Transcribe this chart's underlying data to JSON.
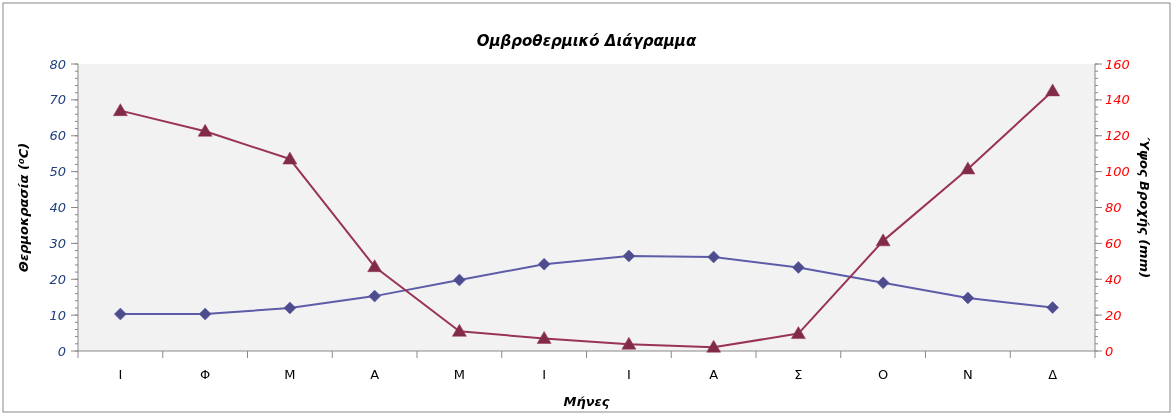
{
  "chart_data": {
    "type": "line",
    "title": "Ομβροθερμικό Διάγραμμα",
    "xlabel": "Μήνες",
    "ylabel": "Θερμοκρασία (⁰C)",
    "y2label": "Ύψος Βροχής (mm)",
    "categories": [
      "Ι",
      "Φ",
      "Μ",
      "Α",
      "Μ",
      "Ι",
      "Ι",
      "Α",
      "Σ",
      "Ο",
      "Ν",
      "Δ"
    ],
    "series": [
      {
        "color": "#5c5ca8",
        "marker": "diamond",
        "values": [
          10.3,
          10.3,
          12.0,
          15.3,
          19.8,
          24.2,
          26.5,
          26.2,
          23.3,
          19.0,
          14.8,
          12.1
        ]
      },
      {
        "color": "#993355",
        "marker": "triangle",
        "axis": "y2",
        "values": [
          134,
          122.5,
          107,
          47,
          11,
          7,
          3.8,
          2.1,
          9.7,
          61.4,
          101.5,
          145
        ]
      }
    ],
    "ylim": [
      0,
      80
    ],
    "yticks": [
      0,
      10,
      20,
      30,
      40,
      50,
      60,
      70,
      80
    ],
    "y2lim": [
      0,
      160
    ],
    "y2ticks": [
      0,
      20,
      40,
      60,
      80,
      100,
      120,
      140,
      160
    ],
    "grid": false
  }
}
